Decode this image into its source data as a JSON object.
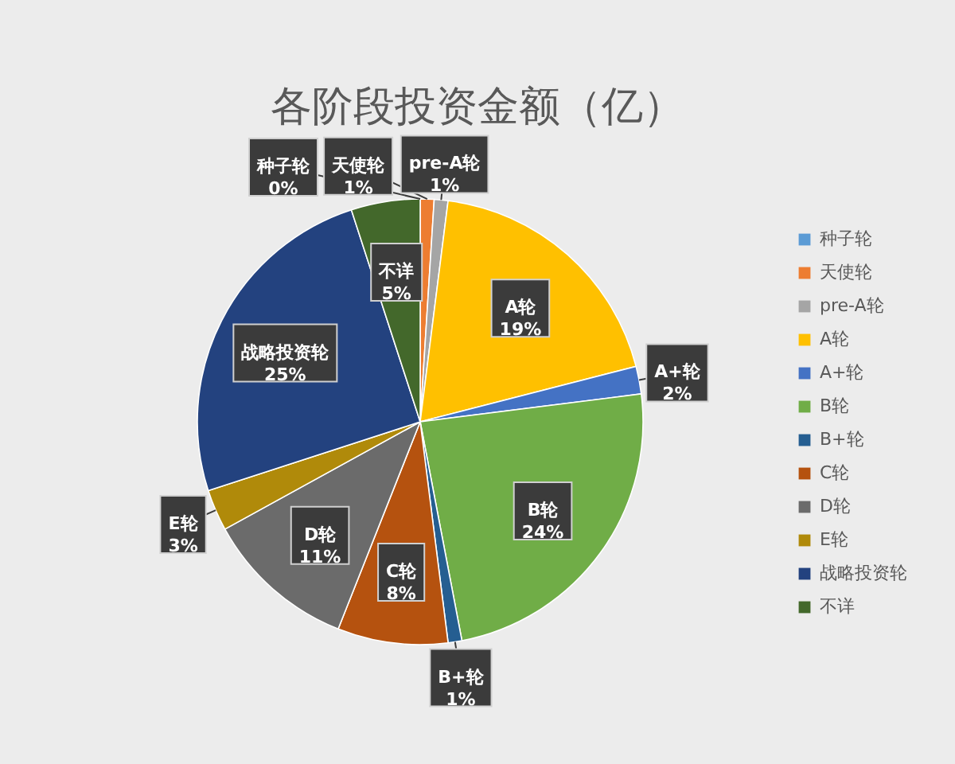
{
  "chart_data": {
    "type": "pie",
    "title": "各阶段投资金额（亿）",
    "categories": [
      "种子轮",
      "天使轮",
      "pre-A轮",
      "A轮",
      "A+轮",
      "B轮",
      "B+轮",
      "C轮",
      "D轮",
      "E轮",
      "战略投资轮",
      "不详"
    ],
    "values": [
      0,
      1,
      1,
      19,
      2,
      24,
      1,
      8,
      11,
      3,
      25,
      5
    ],
    "colors": [
      "#5b9bd5",
      "#ed7d31",
      "#a5a5a5",
      "#ffc000",
      "#4472c4",
      "#70ad47",
      "#255e91",
      "#b5520f",
      "#6b6b6b",
      "#b08a0a",
      "#23427f",
      "#43682b"
    ],
    "value_labels": [
      "0%",
      "1%",
      "1%",
      "19%",
      "2%",
      "24%",
      "1%",
      "8%",
      "11%",
      "3%",
      "25%",
      "5%"
    ],
    "legend": "right"
  }
}
